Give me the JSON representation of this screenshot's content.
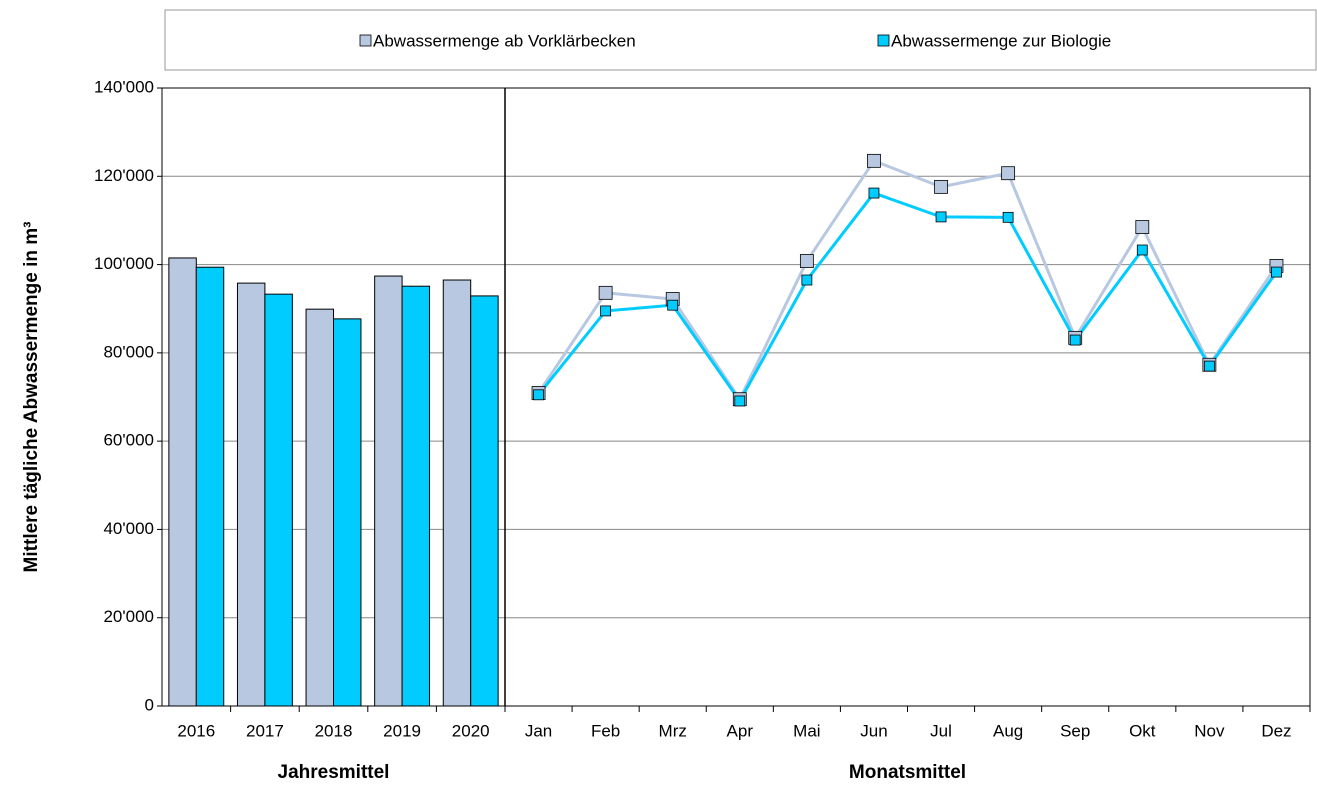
{
  "chart_data": {
    "type": "combo",
    "ylabel": "Mittlere tägliche Abwassermenge in m³",
    "ylim": [
      0,
      140000
    ],
    "yticks": [
      0,
      {
        "value": 20000,
        "label": "20'000"
      },
      {
        "value": 40000,
        "label": "40'000"
      },
      {
        "value": 60000,
        "label": "60'000"
      },
      {
        "value": 80000,
        "label": "80'000"
      },
      {
        "value": 100000,
        "label": "100'000"
      },
      {
        "value": 120000,
        "label": "120'000"
      },
      {
        "value": 140000,
        "label": "140'000"
      }
    ],
    "grid": true,
    "groups": [
      {
        "label": "Jahresmittel",
        "type": "bar",
        "categories": [
          "2016",
          "2017",
          "2018",
          "2019",
          "2020"
        ]
      },
      {
        "label": "Monatsmittel",
        "type": "line",
        "categories": [
          "Jan",
          "Feb",
          "Mrz",
          "Apr",
          "Mai",
          "Jun",
          "Jul",
          "Aug",
          "Sep",
          "Okt",
          "Nov",
          "Dez"
        ]
      }
    ],
    "series": [
      {
        "name": "Abwassermenge ab Vorklärbecken",
        "color": "#b8c8e0",
        "values": [
          101500,
          95800,
          89900,
          97400,
          96500,
          70900,
          93600,
          92200,
          69500,
          100800,
          123500,
          117600,
          120700,
          83400,
          108500,
          77300,
          99700
        ]
      },
      {
        "name": "Abwassermenge zur Biologie",
        "color": "#00ccff",
        "values": [
          99400,
          93300,
          87700,
          95100,
          92900,
          70500,
          89500,
          90800,
          69100,
          96500,
          116200,
          110800,
          110700,
          82900,
          103300,
          77000,
          98300
        ]
      }
    ]
  }
}
